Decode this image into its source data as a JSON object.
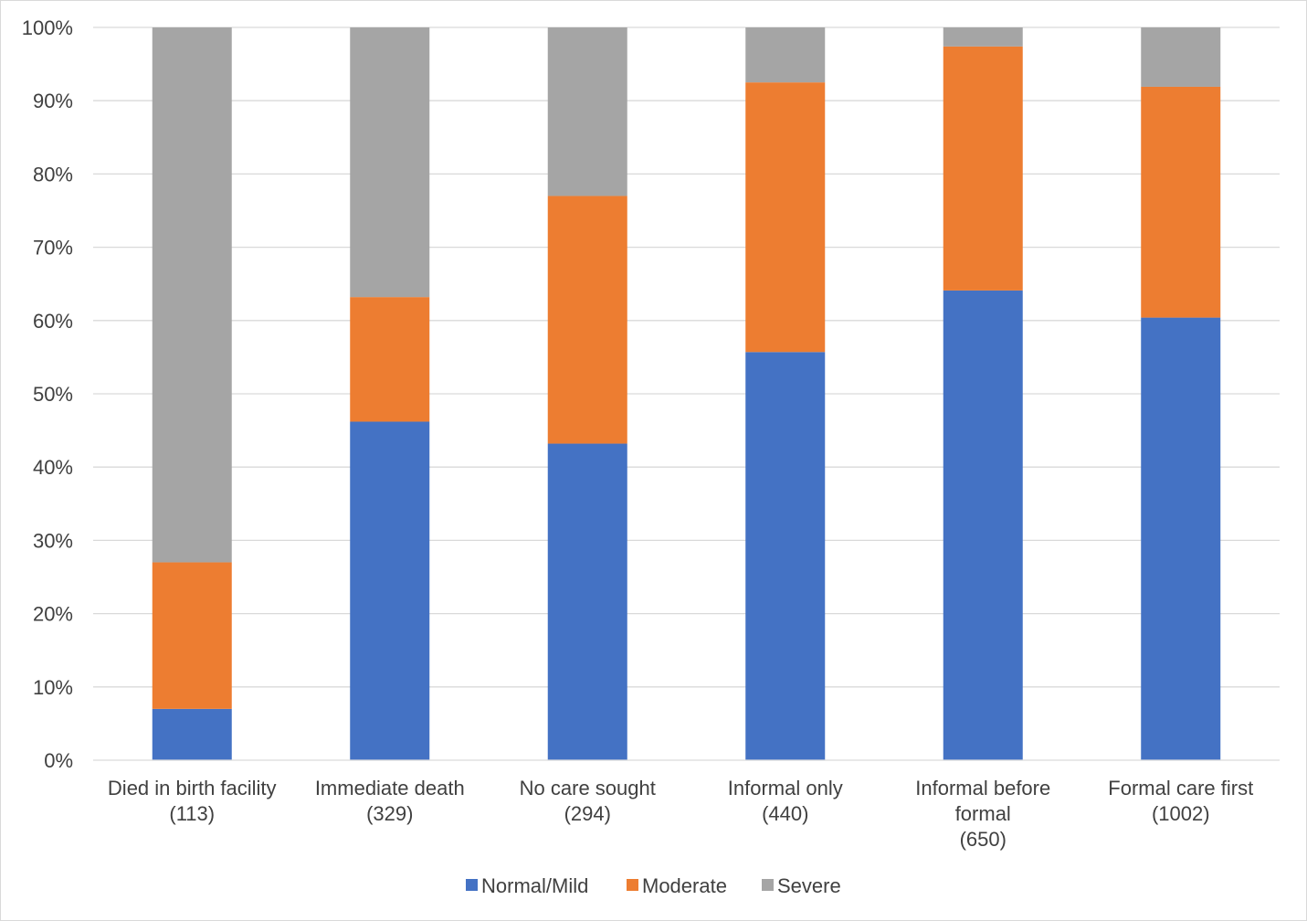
{
  "chart_data": {
    "type": "bar",
    "stacked": true,
    "categories": [
      [
        "Died in birth facility",
        "(113)"
      ],
      [
        "Immediate death",
        "(329)"
      ],
      [
        "No care sought",
        "(294)"
      ],
      [
        "Informal only",
        "(440)"
      ],
      [
        "Informal before",
        "formal",
        "(650)"
      ],
      [
        "Formal care first",
        "(1002)"
      ]
    ],
    "series": [
      {
        "name": "Normal/Mild",
        "color": "#4472c4",
        "values": [
          7,
          46.2,
          43.2,
          55.7,
          64.1,
          60.4
        ]
      },
      {
        "name": "Moderate",
        "color": "#ed7d31",
        "values": [
          20,
          17,
          33.8,
          36.8,
          33.3,
          31.5
        ]
      },
      {
        "name": "Severe",
        "color": "#a5a5a5",
        "values": [
          73,
          36.8,
          23,
          7.5,
          2.6,
          8.1
        ]
      }
    ],
    "ylim": [
      0,
      100
    ],
    "yticks": [
      "0%",
      "10%",
      "20%",
      "30%",
      "40%",
      "50%",
      "60%",
      "70%",
      "80%",
      "90%",
      "100%"
    ],
    "grid": true,
    "legend_position": "bottom"
  }
}
